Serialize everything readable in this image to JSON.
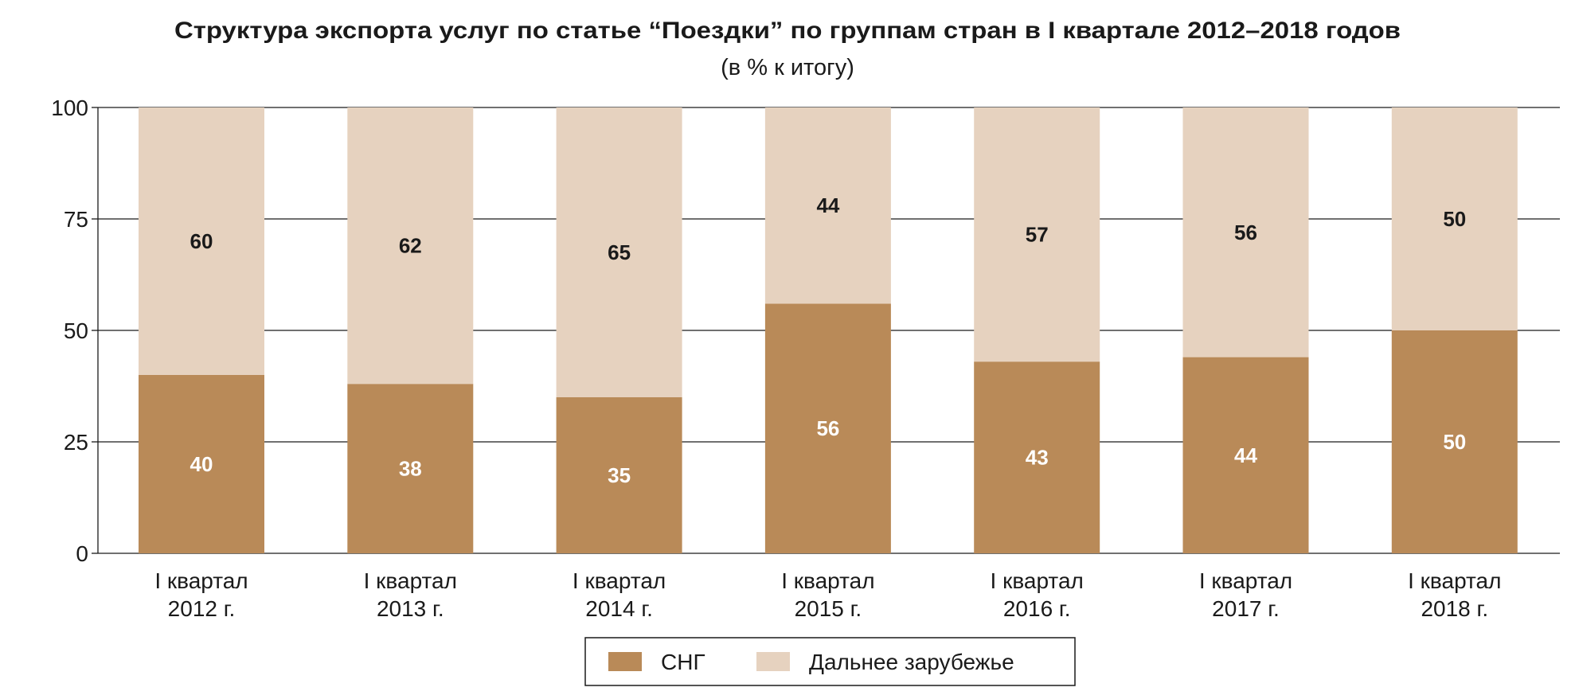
{
  "chart_data": {
    "type": "bar",
    "stacked": true,
    "title": "Структура экспорта услуг по статье “Поездки” по группам стран в I квартале 2012–2018 годов",
    "subtitle": "(в % к итогу)",
    "xlabel": "",
    "ylabel": "",
    "ylim": [
      0,
      100
    ],
    "yticks": [
      0,
      25,
      50,
      75,
      100
    ],
    "grid": true,
    "categories": [
      [
        "I квартал",
        "2012 г."
      ],
      [
        "I квартал",
        "2013 г."
      ],
      [
        "I квартал",
        "2014 г."
      ],
      [
        "I квартал",
        "2015 г."
      ],
      [
        "I квартал",
        "2016 г."
      ],
      [
        "I квартал",
        "2017 г."
      ],
      [
        "I квартал",
        "2018 г."
      ]
    ],
    "series": [
      {
        "name": "СНГ",
        "color": "#b98a58",
        "label_color": "#ffffff",
        "values": [
          40,
          38,
          35,
          56,
          43,
          44,
          50
        ]
      },
      {
        "name": "Дальнее зарубежье",
        "color": "#e6d2bf",
        "label_color": "#1a1a1a",
        "values": [
          60,
          62,
          65,
          44,
          57,
          56,
          50
        ]
      }
    ],
    "legend_position": "bottom"
  }
}
